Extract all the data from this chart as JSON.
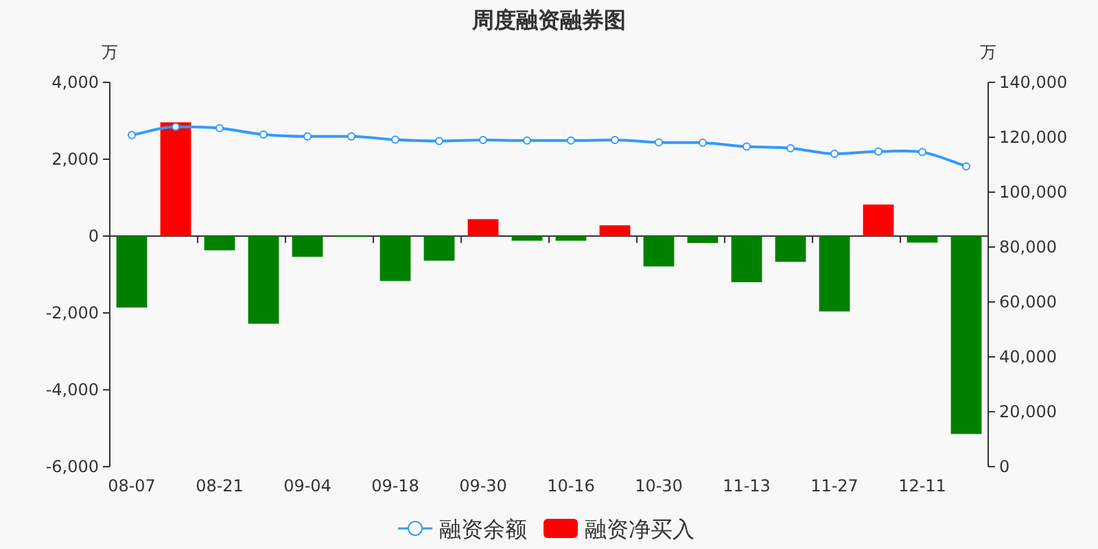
{
  "chart_data": {
    "type": "bar",
    "title": "周度融资融券图",
    "ylabel": "万",
    "y2label": "万",
    "categories": [
      "08-07",
      null,
      "08-21",
      null,
      "09-04",
      null,
      "09-18",
      null,
      "09-30",
      null,
      "10-16",
      null,
      "10-30",
      null,
      "11-13",
      null,
      "11-27",
      null,
      "12-11",
      null
    ],
    "series": [
      {
        "name": "融资余额",
        "type": "line",
        "axis": "y2",
        "color": "#3399ff",
        "marker": "circle",
        "values": [
          120800,
          123800,
          123300,
          121000,
          120300,
          120300,
          119100,
          118600,
          119000,
          118800,
          118800,
          119000,
          118100,
          118000,
          116600,
          116000,
          114000,
          114800,
          114600,
          109400
        ]
      },
      {
        "name": "融资净买入",
        "color": "#ff0000",
        "colors": [
          "#008000",
          "#ff0000",
          "#008000",
          "#008000",
          "#008000",
          "#008000",
          "#008000",
          "#008000",
          "#ff0000",
          "#008000",
          "#008000",
          "#ff0000",
          "#008000",
          "#008000",
          "#008000",
          "#008000",
          "#008000",
          "#ff0000",
          "#008000",
          "#008000"
        ],
        "values": [
          -1860,
          2960,
          -370,
          -2280,
          -540,
          -20,
          -1170,
          -640,
          440,
          -120,
          -120,
          280,
          -790,
          -180,
          -1200,
          -670,
          -1960,
          820,
          -170,
          -5150
        ]
      }
    ],
    "ylim": [
      -6000,
      4000
    ],
    "yticks": [
      {
        "value": -6000,
        "label": "-6,000"
      },
      {
        "value": -4000,
        "label": "-4,000"
      },
      {
        "value": -2000,
        "label": "-2,000"
      },
      0,
      {
        "value": 2000,
        "label": "2,000"
      },
      {
        "value": 4000,
        "label": "4,000"
      }
    ],
    "y2lim": [
      0,
      140000
    ],
    "y2ticks": [
      0,
      {
        "value": 20000,
        "label": "20,000"
      },
      {
        "value": 40000,
        "label": "40,000"
      },
      {
        "value": 60000,
        "label": "60,000"
      },
      {
        "value": 80000,
        "label": "80,000"
      },
      {
        "value": 100000,
        "label": "100,000"
      },
      {
        "value": 120000,
        "label": "120,000"
      },
      {
        "value": 140000,
        "label": "140,000"
      }
    ],
    "legend": "bottom"
  }
}
